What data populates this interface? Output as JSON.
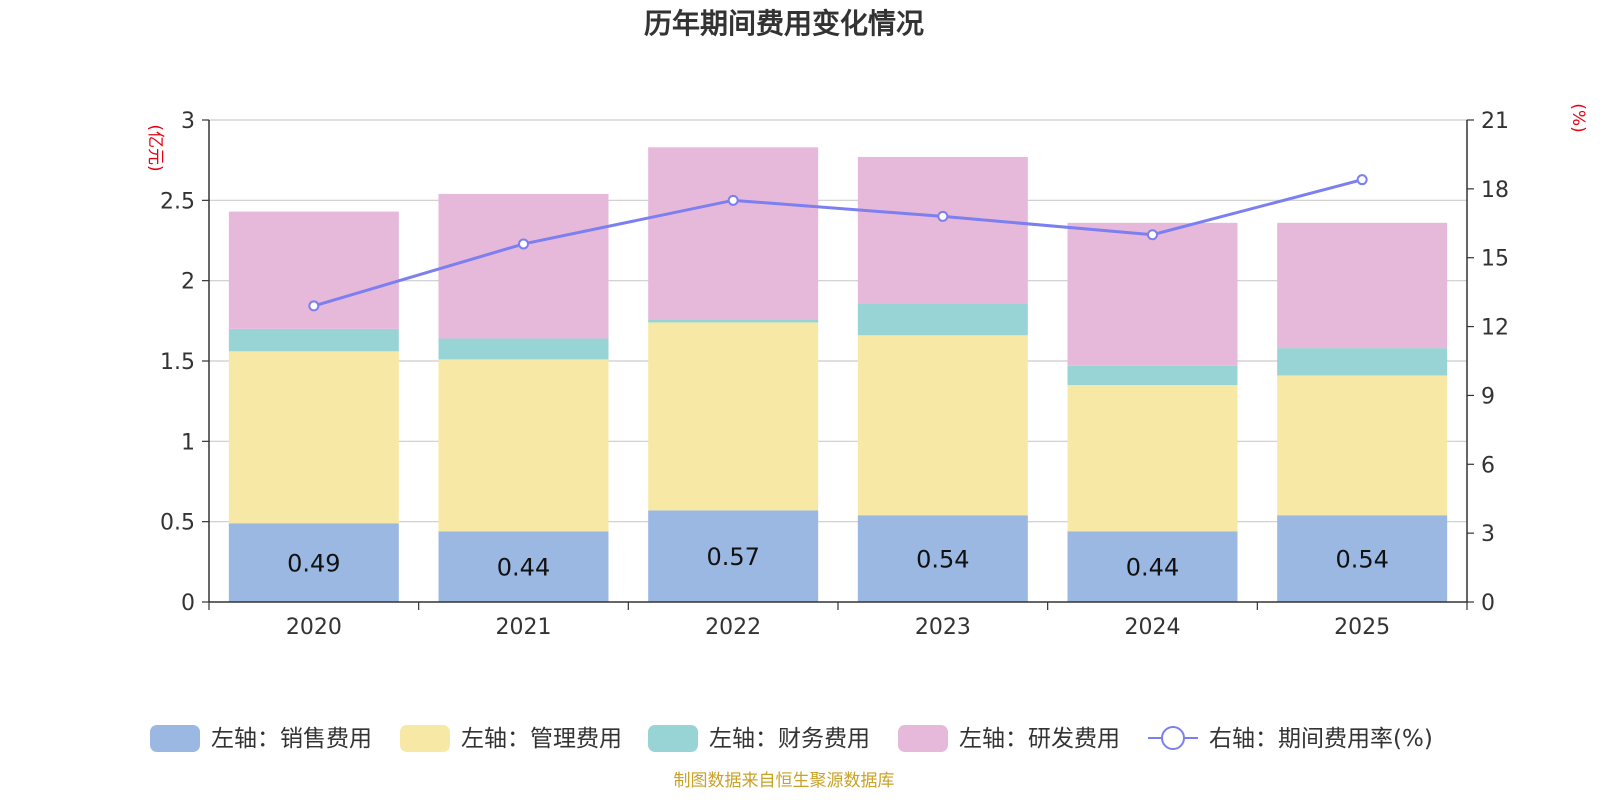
{
  "chart_data": {
    "type": "bar",
    "title": "历年期间费用变化情况",
    "categories": [
      "2020",
      "2021",
      "2022",
      "2023",
      "2024",
      "2025"
    ],
    "left_axis": {
      "unit": "(亿元)",
      "ylim": [
        0,
        3
      ],
      "ticks": [
        "0",
        "0.5",
        "1",
        "1.5",
        "2",
        "2.5",
        "3"
      ]
    },
    "right_axis": {
      "unit": "(%)",
      "ylim": [
        0,
        21
      ],
      "ticks": [
        "0",
        "3",
        "6",
        "9",
        "12",
        "15",
        "18",
        "21"
      ]
    },
    "series": [
      {
        "name": "左轴：销售费用",
        "type": "bar",
        "color": "#9bb8e3",
        "values": [
          0.49,
          0.44,
          0.57,
          0.54,
          0.44,
          0.54
        ],
        "labels": [
          "0.49",
          "0.44",
          "0.57",
          "0.54",
          "0.44",
          "0.54"
        ]
      },
      {
        "name": "左轴：管理费用",
        "type": "bar",
        "color": "#f8e8a6",
        "values": [
          1.07,
          1.07,
          1.17,
          1.12,
          0.91,
          0.87
        ]
      },
      {
        "name": "左轴：财务费用",
        "type": "bar",
        "color": "#98d4d5",
        "values": [
          0.14,
          0.13,
          0.02,
          0.2,
          0.12,
          0.17
        ]
      },
      {
        "name": "左轴：研发费用",
        "type": "bar",
        "color": "#e6b9da",
        "values": [
          0.73,
          0.9,
          1.07,
          0.91,
          0.89,
          0.78
        ]
      },
      {
        "name": "右轴：期间费用率(%)",
        "type": "line",
        "color": "#7b7ff0",
        "values": [
          12.9,
          15.6,
          17.5,
          16.8,
          16.0,
          18.4
        ]
      }
    ],
    "grid": true,
    "legend_position": "bottom"
  },
  "footer": {
    "source": "制图数据来自恒生聚源数据库"
  }
}
